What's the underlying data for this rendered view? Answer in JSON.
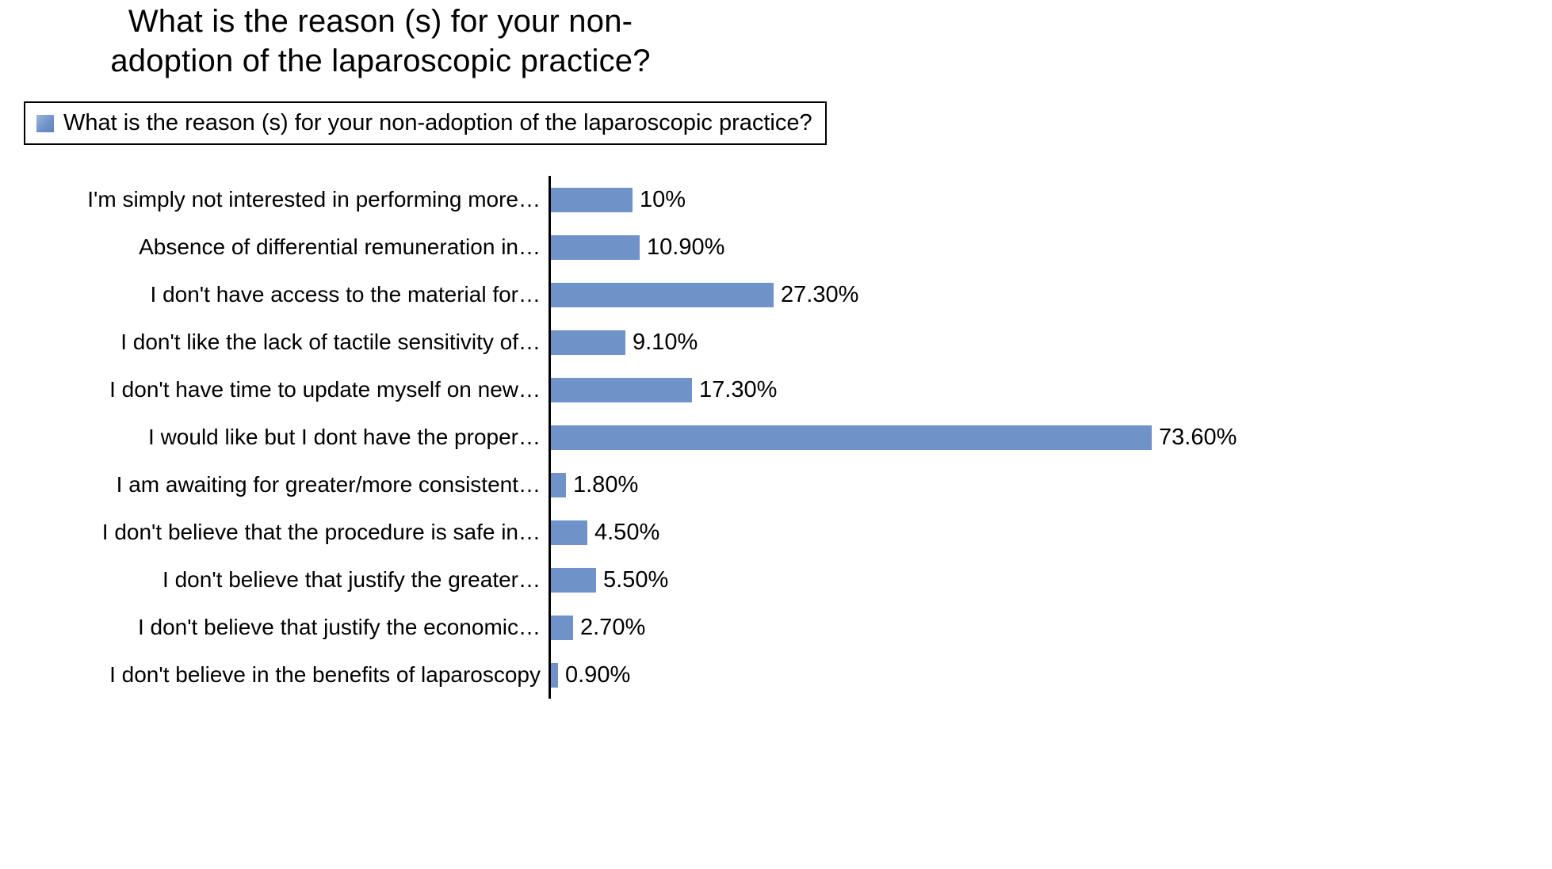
{
  "chart_data": {
    "type": "bar",
    "orientation": "horizontal",
    "title": "What is the reason (s) for your non-adoption of the laparoscopic practice?",
    "title_lines": {
      "line1": "What is the reason (s) for your non-",
      "line2": "adoption of the laparoscopic practice?"
    },
    "legend": {
      "label": "What is the reason (s) for your non-adoption of the laparoscopic practice?",
      "swatch_color": "#6f92c9"
    },
    "bar_color": "#6f92c9",
    "xlim": [
      0,
      80
    ],
    "grid": false,
    "legend_position": "top",
    "categories": [
      "I'm simply not interested in performing more…",
      "Absence of differential remuneration in…",
      "I don't have access to the material for…",
      "I don't like the lack of tactile sensitivity of…",
      "I don't have time to update myself on new…",
      "I would like but I dont have the proper…",
      "I am awaiting for greater/more consistent…",
      "I don't believe that the procedure is safe in…",
      "I don't believe that justify the greater…",
      "I don't believe that justify the economic…",
      "I don't believe in the benefits of laparoscopy"
    ],
    "values": [
      10,
      10.9,
      27.3,
      9.1,
      17.3,
      73.6,
      1.8,
      4.5,
      5.5,
      2.7,
      0.9
    ],
    "value_labels": [
      "10%",
      "10.90%",
      "27.30%",
      "9.10%",
      "17.30%",
      "73.60%",
      "1.80%",
      "4.50%",
      "5.50%",
      "2.70%",
      "0.90%"
    ]
  }
}
